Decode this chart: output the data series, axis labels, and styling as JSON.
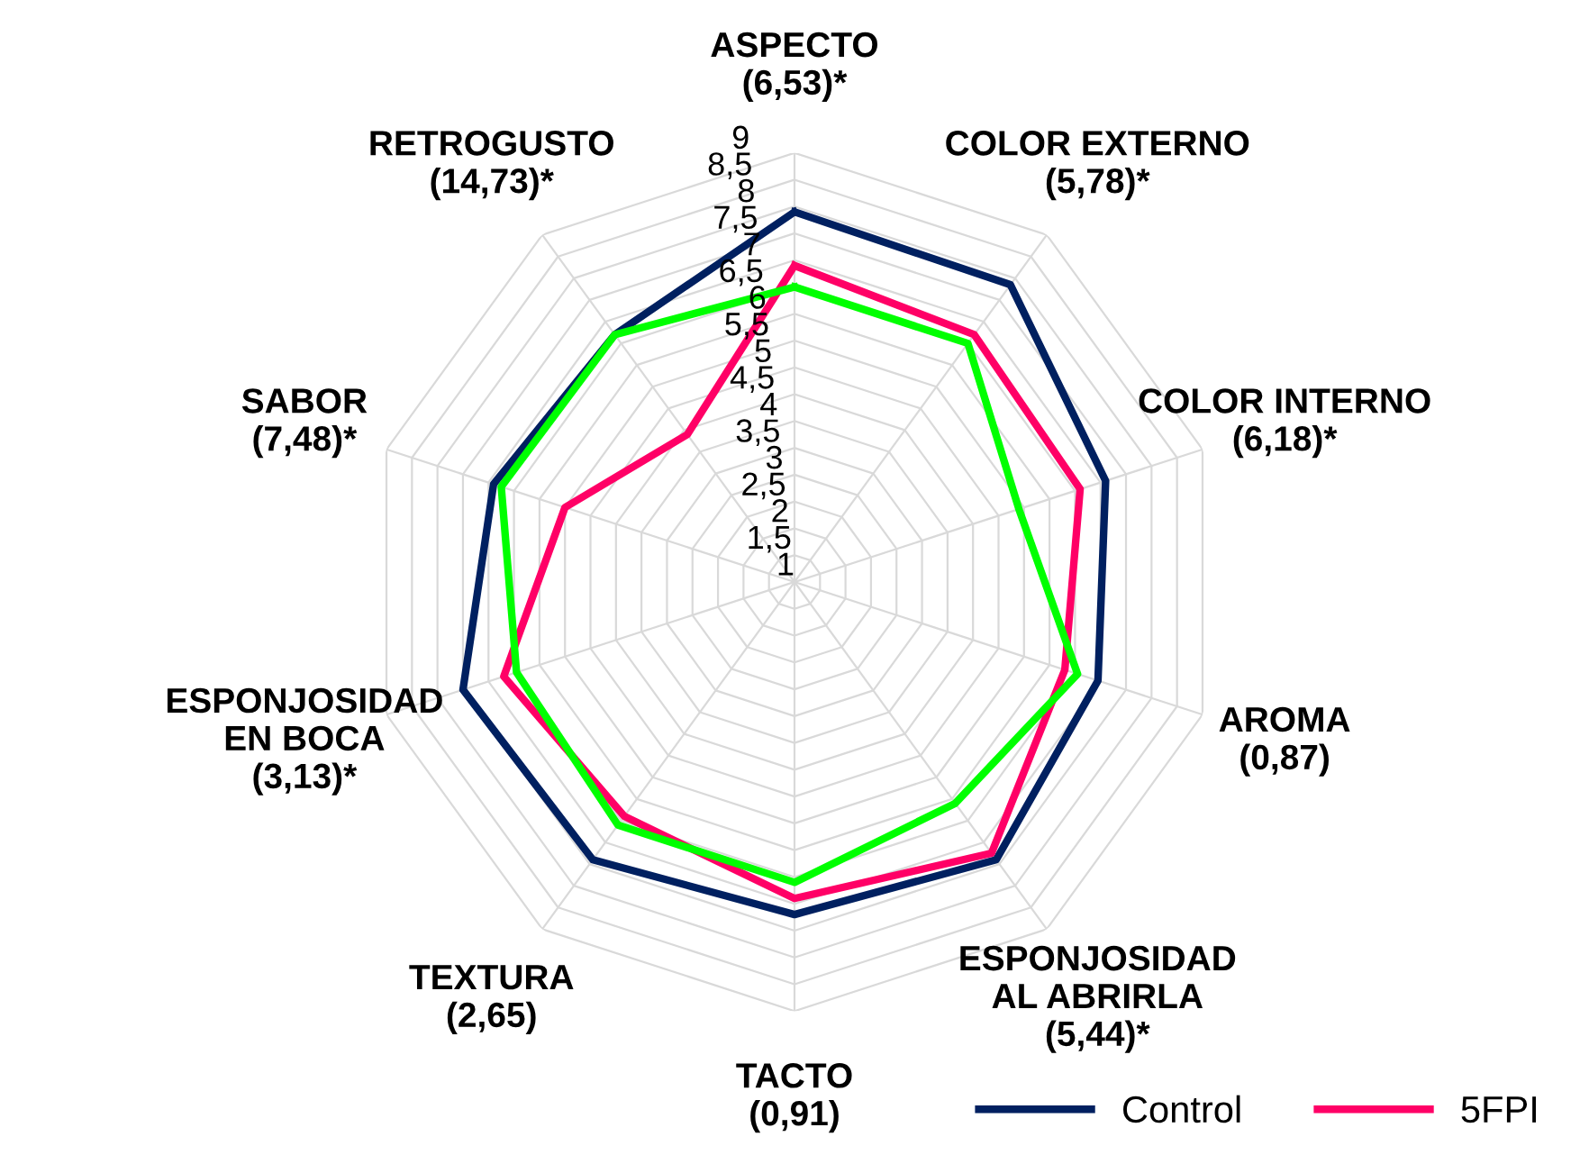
{
  "chart_data": {
    "type": "radar",
    "categories": [
      "ASPECTO\n(6,53)*",
      "COLOR EXTERNO\n(5,78)*",
      "COLOR INTERNO\n(6,18)*",
      "AROMA\n(0,87)",
      "ESPONJOSIDAD\nAL ABRIRLA\n(5,44)*",
      "TACTO\n(0,91)",
      "TEXTURA\n(2,65)",
      "ESPONJOSIDAD\nEN BOCA\n(3,13)*",
      "SABOR\n(7,48)*",
      "RETROGUSTO\n(14,73)*"
    ],
    "series": [
      {
        "name": "Control",
        "color": "#002060",
        "values": [
          7.9,
          7.85,
          7.1,
          6.95,
          7.4,
          7.2,
          7.4,
          7.5,
          6.9,
          6.7
        ]
      },
      {
        "name": "5FPI",
        "color": "#ff0066",
        "values": [
          6.9,
          6.7,
          6.6,
          6.3,
          7.25,
          6.9,
          6.4,
          6.7,
          5.5,
          4.4
        ]
      },
      {
        "color": "#00ff00",
        "values": [
          6.5,
          6.5,
          5.4,
          6.55,
          6.1,
          6.6,
          6.6,
          6.45,
          6.75,
          6.7
        ]
      }
    ],
    "ylim": [
      1,
      9
    ],
    "yticks": [
      1,
      {
        "value": 1.5,
        "label": "1,5"
      },
      2,
      {
        "value": 2.5,
        "label": "2,5"
      },
      3,
      {
        "value": 3.5,
        "label": "3,5"
      },
      4,
      {
        "value": 4.5,
        "label": "4,5"
      },
      5,
      {
        "value": 5.5,
        "label": "5,5"
      },
      6,
      {
        "value": 6.5,
        "label": "6,5"
      },
      7,
      {
        "value": 7.5,
        "label": "7,5"
      },
      8,
      {
        "value": 8.5,
        "label": "8,5"
      },
      9
    ],
    "grid": true,
    "legend": "bottom right"
  }
}
